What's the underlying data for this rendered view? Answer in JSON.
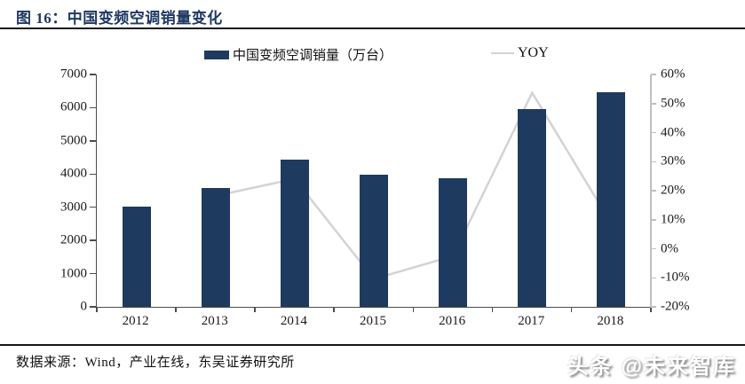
{
  "header": {
    "title": "图 16：中国变频空调销量变化"
  },
  "legend": {
    "bar_label": "中国变频空调销量（万台）",
    "line_label": "YOY"
  },
  "chart_data": {
    "type": "bar",
    "title": "中国变频空调销量变化",
    "categories": [
      "2012",
      "2013",
      "2014",
      "2015",
      "2016",
      "2017",
      "2018"
    ],
    "series": [
      {
        "name": "中国变频空调销量（万台）",
        "type": "bar",
        "axis": "left",
        "values": [
          3020,
          3570,
          4430,
          3970,
          3870,
          5950,
          6470
        ]
      },
      {
        "name": "YOY",
        "type": "line",
        "axis": "right",
        "unit": "%",
        "values": [
          null,
          18.2,
          24.1,
          -10.4,
          -2.5,
          53.7,
          8.7
        ]
      }
    ],
    "left_axis": {
      "range": [
        0,
        7000
      ],
      "ticks": [
        "0",
        "1000",
        "2000",
        "3000",
        "4000",
        "5000",
        "6000",
        "7000"
      ]
    },
    "right_axis": {
      "range": [
        -20,
        60
      ],
      "ticks": [
        "-20%",
        "-10%",
        "0%",
        "10%",
        "20%",
        "30%",
        "40%",
        "50%",
        "60%"
      ]
    },
    "grid": false,
    "legend_position": "top"
  },
  "footer": {
    "source": "数据来源：Wind，产业在线，东吴证券研究所",
    "watermark": "头条 @未来智库"
  },
  "colors": {
    "bar": "#1e3a5f",
    "line": "#d3d3d3",
    "title": "#1f3864",
    "rule": "#14181f",
    "axis_left": "#4d4d4d",
    "axis_right": "#bfbfbf",
    "text": "#1a1a1a"
  }
}
